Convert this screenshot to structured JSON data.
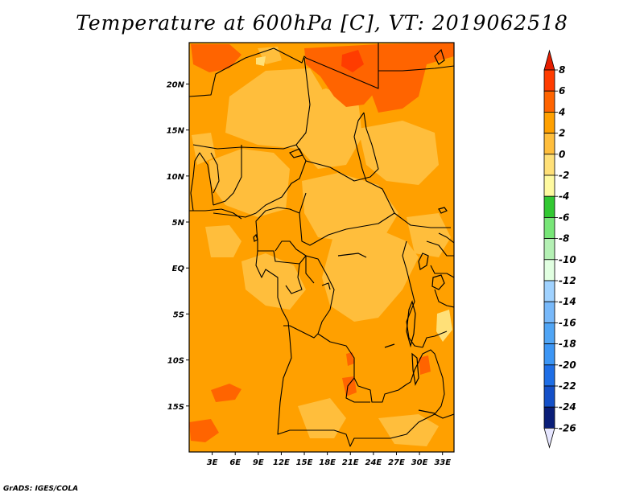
{
  "title": "Temperature at 600hPa [C], VT: 2019062518",
  "credit": "GrADS: IGES/COLA",
  "map": {
    "lon_range": [
      0,
      34.5
    ],
    "lat_range": [
      -20,
      24.5
    ],
    "lon_ticks": [
      {
        "value": 3,
        "label": "3E"
      },
      {
        "value": 6,
        "label": "6E"
      },
      {
        "value": 9,
        "label": "9E"
      },
      {
        "value": 12,
        "label": "12E"
      },
      {
        "value": 15,
        "label": "15E"
      },
      {
        "value": 18,
        "label": "18E"
      },
      {
        "value": 21,
        "label": "21E"
      },
      {
        "value": 24,
        "label": "24E"
      },
      {
        "value": 27,
        "label": "27E"
      },
      {
        "value": 30,
        "label": "30E"
      },
      {
        "value": 33,
        "label": "33E"
      }
    ],
    "lat_ticks": [
      {
        "value": 20,
        "label": "20N"
      },
      {
        "value": 15,
        "label": "15N"
      },
      {
        "value": 10,
        "label": "10N"
      },
      {
        "value": 5,
        "label": "5N"
      },
      {
        "value": 0,
        "label": "EQ"
      },
      {
        "value": -5,
        "label": "5S"
      },
      {
        "value": -10,
        "label": "10S"
      },
      {
        "value": -15,
        "label": "15S"
      }
    ],
    "base_color": "#ffa000"
  },
  "colorbar": {
    "levels": [
      "8",
      "6",
      "4",
      "2",
      "0",
      "-2",
      "-4",
      "-6",
      "-8",
      "-10",
      "-12",
      "-14",
      "-16",
      "-18",
      "-20",
      "-22",
      "-24",
      "-26"
    ],
    "colors": [
      "#ff3c00",
      "#ff6400",
      "#ffa000",
      "#ffbe3c",
      "#ffe078",
      "#fffaa0",
      "#32c832",
      "#78e678",
      "#b4f0b4",
      "#e1ffe1",
      "#a0d2ff",
      "#78b9fa",
      "#50a5f5",
      "#3c96f5",
      "#1e6ee6",
      "#1450c8",
      "#0a1e78"
    ],
    "top_arrow_color": "#e61e00",
    "bottom_arrow_color": "#e6e6ff"
  }
}
